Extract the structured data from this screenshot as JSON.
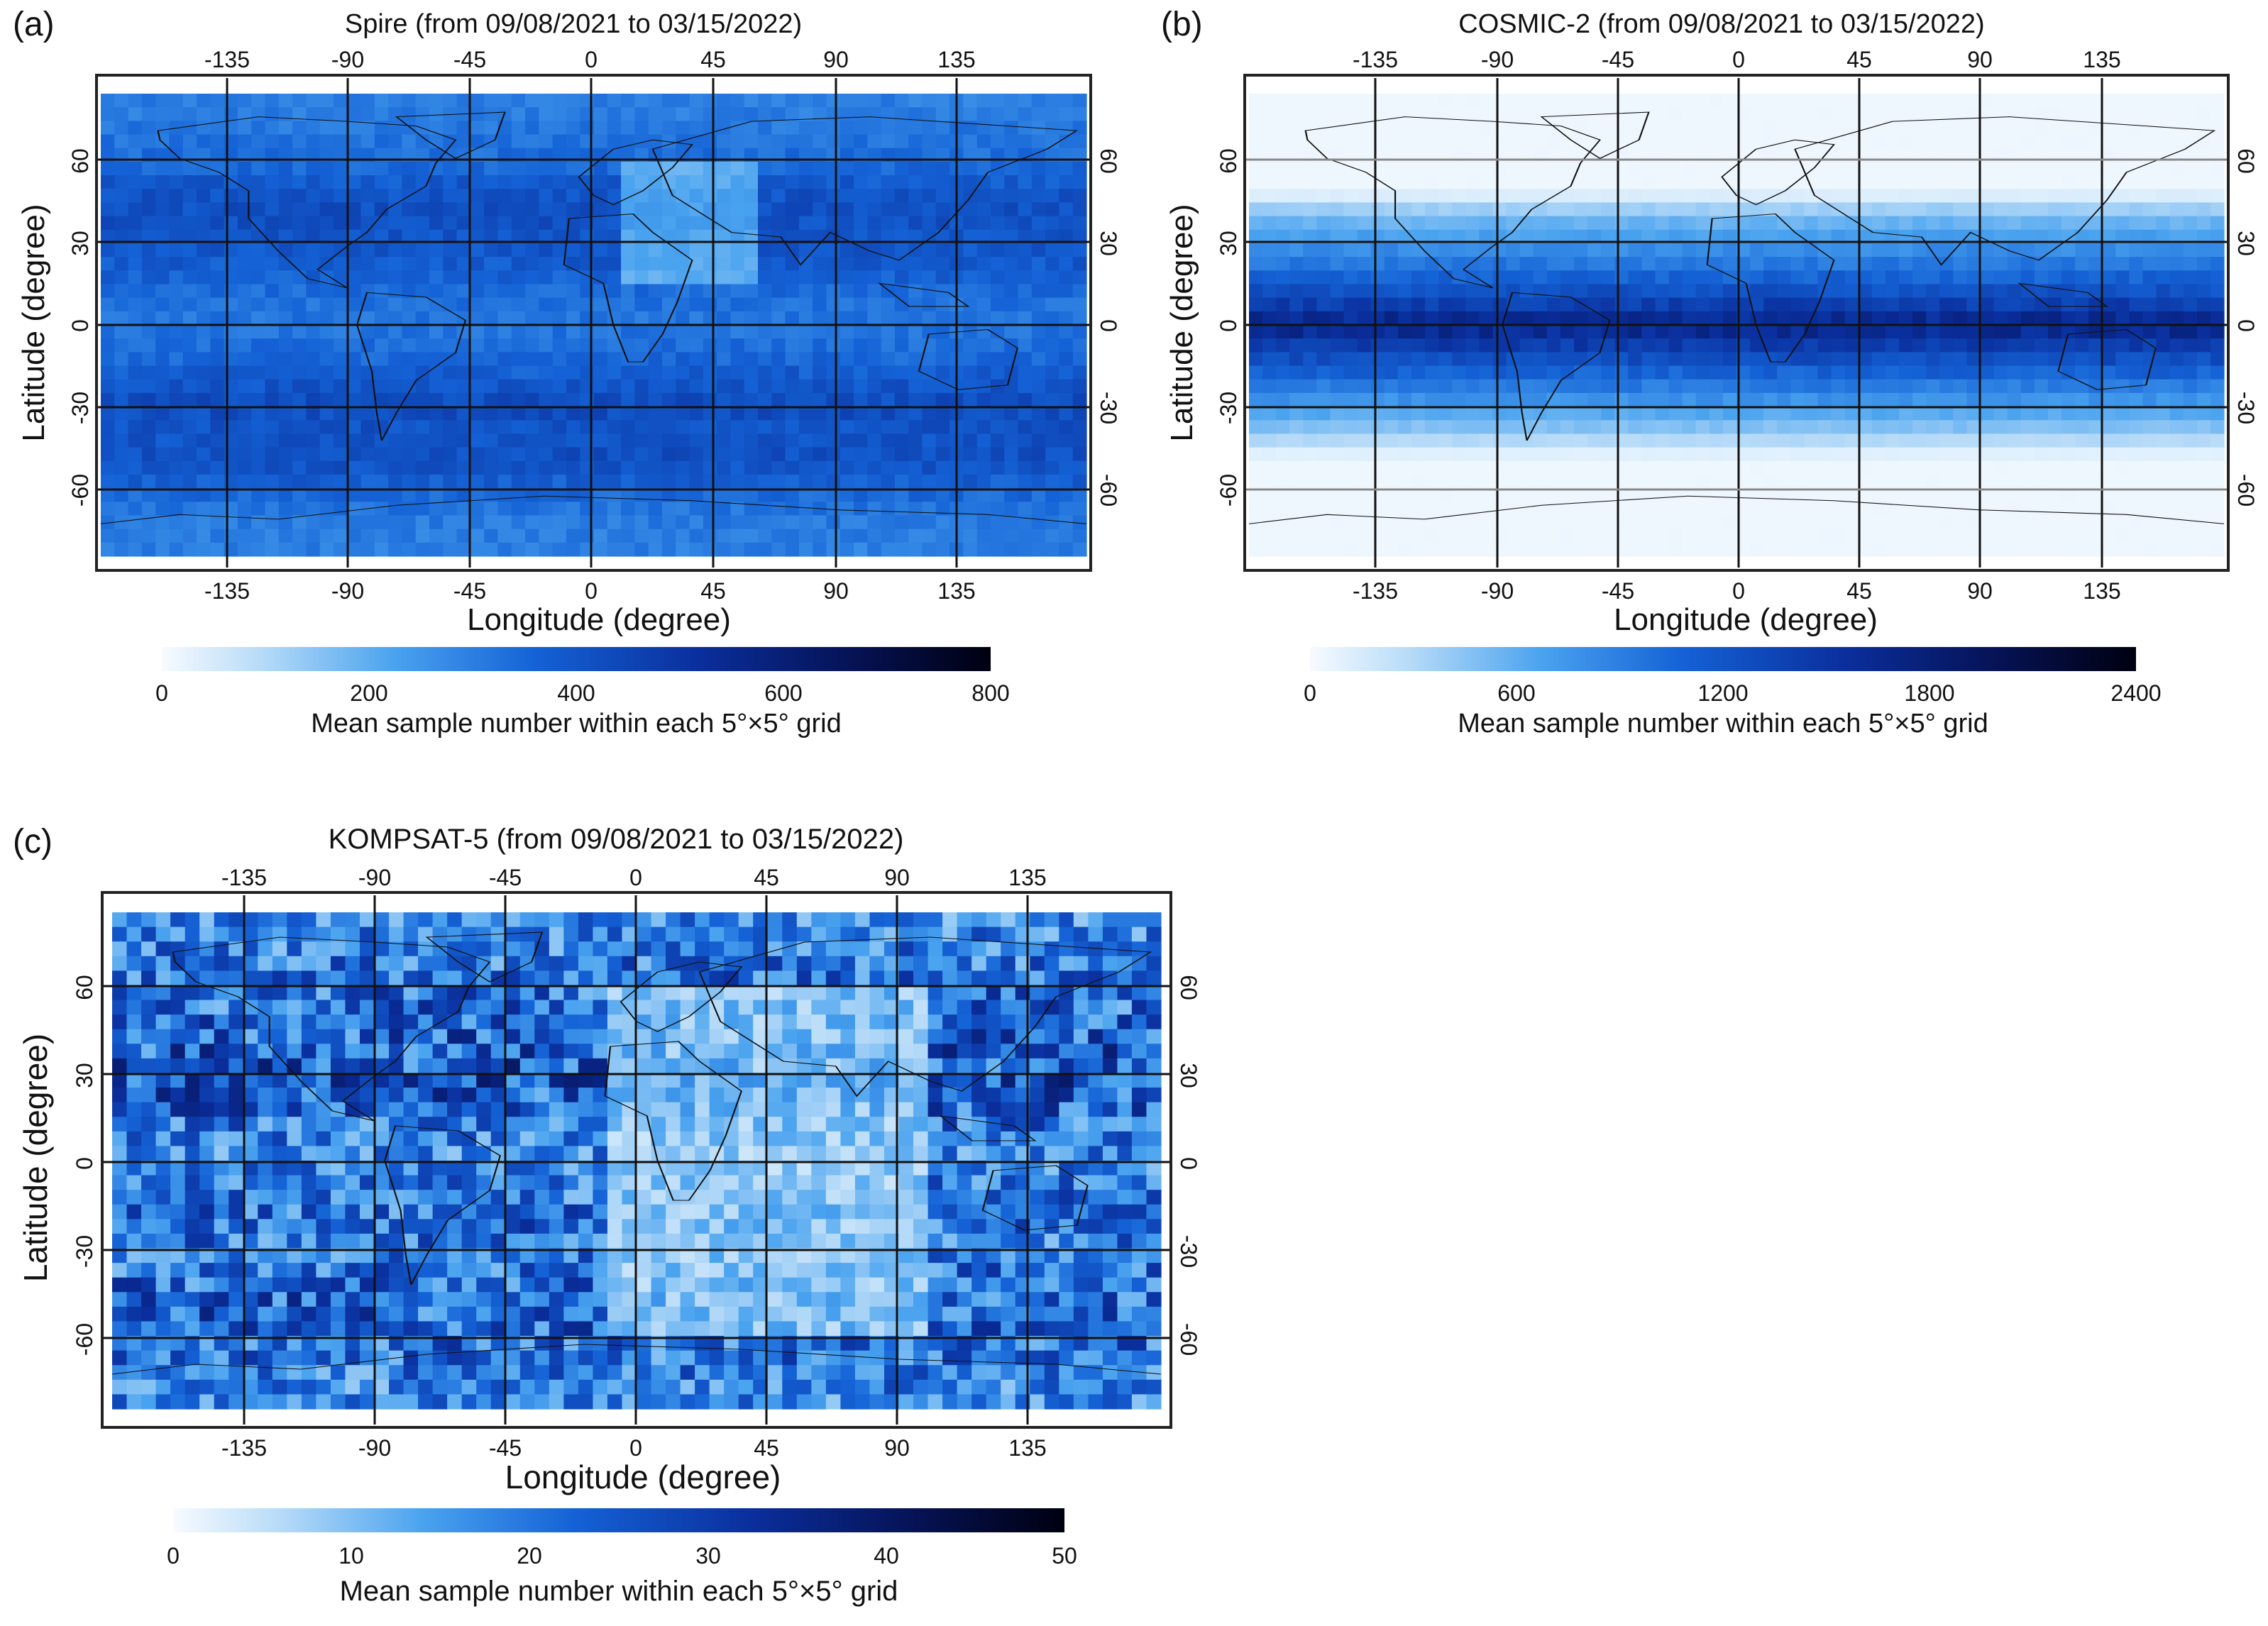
{
  "figure_description_free": true,
  "panels": [
    {
      "letter": "(a)",
      "title": "Spire (from 09/08/2021 to 03/15/2022)",
      "xlabel": "Longitude (degree)",
      "ylabel": "Latitude (degree)",
      "lon_ticks": [
        "-135",
        "-90",
        "-45",
        "0",
        "45",
        "90",
        "135"
      ],
      "lat_ticks": [
        "60",
        "30",
        "0",
        "-30",
        "-60"
      ],
      "colorbar_label": "Mean sample number within each 5°×5° grid",
      "colorbar_ticks": [
        "0",
        "200",
        "400",
        "600",
        "800"
      ]
    },
    {
      "letter": "(b)",
      "title": "COSMIC-2 (from 09/08/2021 to 03/15/2022)",
      "xlabel": "Longitude (degree)",
      "ylabel": "Latitude (degree)",
      "lon_ticks": [
        "-135",
        "-90",
        "-45",
        "0",
        "45",
        "90",
        "135"
      ],
      "lat_ticks": [
        "60",
        "30",
        "0",
        "-30",
        "-60"
      ],
      "colorbar_label": "Mean sample number within each 5°×5° grid",
      "colorbar_ticks": [
        "0",
        "600",
        "1200",
        "1800",
        "2400"
      ]
    },
    {
      "letter": "(c)",
      "title": "KOMPSAT-5 (from 09/08/2021 to 03/15/2022)",
      "xlabel": "Longitude (degree)",
      "ylabel": "Latitude (degree)",
      "lon_ticks": [
        "-135",
        "-90",
        "-45",
        "0",
        "45",
        "90",
        "135"
      ],
      "lat_ticks": [
        "60",
        "30",
        "0",
        "-30",
        "-60"
      ],
      "colorbar_label": "Mean sample number within each 5°×5° grid",
      "colorbar_ticks": [
        "0",
        "10",
        "20",
        "30",
        "40",
        "50"
      ]
    }
  ],
  "chart_data": [
    {
      "type": "heatmap",
      "title": "Spire (from 09/08/2021 to 03/15/2022)",
      "xlabel": "Longitude (degree)",
      "ylabel": "Latitude (degree)",
      "grid_resolution_deg": 5,
      "lon_range": [
        -180,
        180
      ],
      "lat_range": [
        -85,
        85
      ],
      "color_range": [
        0,
        800
      ],
      "colorbar_ticks": [
        0,
        200,
        400,
        600,
        800
      ],
      "latitude_profile": {
        "lat": [
          80,
          70,
          60,
          50,
          40,
          30,
          20,
          10,
          0,
          -10,
          -20,
          -30,
          -40,
          -50,
          -60,
          -70,
          -80
        ],
        "mean_samples": [
          300,
          320,
          340,
          400,
          420,
          400,
          380,
          330,
          320,
          340,
          390,
          430,
          400,
          420,
          360,
          310,
          300
        ]
      }
    },
    {
      "type": "heatmap",
      "title": "COSMIC-2 (from 09/08/2021 to 03/15/2022)",
      "xlabel": "Longitude (degree)",
      "ylabel": "Latitude (degree)",
      "grid_resolution_deg": 5,
      "lon_range": [
        -180,
        180
      ],
      "lat_range": [
        -85,
        85
      ],
      "color_range": [
        0,
        2400
      ],
      "colorbar_ticks": [
        0,
        600,
        1200,
        1800,
        2400
      ],
      "latitude_profile": {
        "lat": [
          80,
          70,
          60,
          50,
          40,
          30,
          20,
          10,
          0,
          -10,
          -20,
          -30,
          -40,
          -50,
          -60,
          -70,
          -80
        ],
        "mean_samples": [
          0,
          0,
          0,
          0,
          500,
          750,
          1000,
          1300,
          1700,
          1350,
          1000,
          700,
          400,
          0,
          0,
          0,
          0
        ]
      }
    },
    {
      "type": "heatmap",
      "title": "KOMPSAT-5 (from 09/08/2021 to 03/15/2022)",
      "xlabel": "Longitude (degree)",
      "ylabel": "Latitude (degree)",
      "grid_resolution_deg": 5,
      "lon_range": [
        -180,
        180
      ],
      "lat_range": [
        -85,
        85
      ],
      "color_range": [
        0,
        50
      ],
      "colorbar_ticks": [
        0,
        10,
        20,
        30,
        40,
        50
      ],
      "latitude_profile": {
        "lat": [
          80,
          70,
          60,
          50,
          40,
          30,
          20,
          10,
          0,
          -10,
          -20,
          -30,
          -40,
          -50,
          -60,
          -70,
          -80
        ],
        "mean_samples": [
          18,
          20,
          22,
          22,
          24,
          26,
          24,
          20,
          18,
          20,
          22,
          20,
          22,
          24,
          22,
          20,
          18
        ]
      },
      "note_regions": "lower counts over Africa, Europe and Indian Ocean sector (about 0 to 90 E)"
    }
  ]
}
